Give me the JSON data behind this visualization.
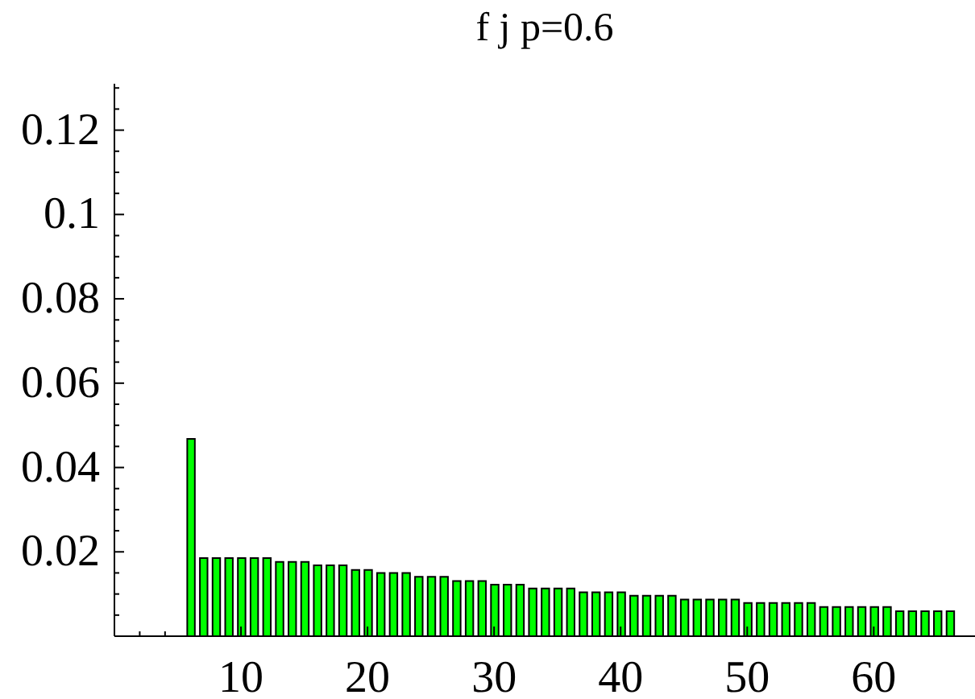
{
  "chart_data": {
    "type": "bar",
    "title": "f j p=0.6",
    "x": [
      6,
      7,
      8,
      9,
      10,
      11,
      12,
      13,
      14,
      15,
      16,
      17,
      18,
      19,
      20,
      21,
      22,
      23,
      24,
      25,
      26,
      27,
      28,
      29,
      30,
      31,
      32,
      33,
      34,
      35,
      36,
      37,
      38,
      39,
      40,
      41,
      42,
      43,
      44,
      45,
      46,
      47,
      48,
      49,
      50,
      51,
      52,
      53,
      54,
      55,
      56,
      57,
      58,
      59,
      60,
      61,
      62,
      63,
      64,
      65,
      66
    ],
    "values": [
      0.0468,
      0.0185,
      0.0185,
      0.0185,
      0.0185,
      0.0185,
      0.0185,
      0.0176,
      0.0176,
      0.0176,
      0.0168,
      0.0168,
      0.0168,
      0.0157,
      0.0157,
      0.015,
      0.015,
      0.015,
      0.0141,
      0.0141,
      0.0141,
      0.0131,
      0.0131,
      0.0131,
      0.0122,
      0.0122,
      0.0122,
      0.0113,
      0.0113,
      0.0113,
      0.0113,
      0.0104,
      0.0104,
      0.0104,
      0.0104,
      0.0096,
      0.0096,
      0.0096,
      0.0096,
      0.0087,
      0.0087,
      0.0087,
      0.0087,
      0.0087,
      0.0079,
      0.0079,
      0.0079,
      0.0079,
      0.0079,
      0.0079,
      0.0069,
      0.0069,
      0.0069,
      0.0069,
      0.0069,
      0.0069,
      0.0059,
      0.0059,
      0.0059,
      0.0059,
      0.0059
    ],
    "color": "#00ff00",
    "xlim": [
      0,
      68
    ],
    "xticks": [
      {
        "value": 2,
        "label": null
      },
      {
        "value": 4,
        "label": null
      },
      10,
      20,
      30,
      40,
      50,
      60
    ],
    "ylim": [
      0,
      0.131
    ],
    "yticks": [
      {
        "value": 0.005,
        "label": null
      },
      {
        "value": 0.01,
        "label": null
      },
      {
        "value": 0.015,
        "label": null
      },
      0.02,
      {
        "value": 0.025,
        "label": null
      },
      {
        "value": 0.03,
        "label": null
      },
      {
        "value": 0.035,
        "label": null
      },
      0.04,
      {
        "value": 0.045,
        "label": null
      },
      {
        "value": 0.05,
        "label": null
      },
      {
        "value": 0.055,
        "label": null
      },
      0.06,
      {
        "value": 0.065,
        "label": null
      },
      {
        "value": 0.07,
        "label": null
      },
      {
        "value": 0.075,
        "label": null
      },
      0.08,
      {
        "value": 0.085,
        "label": null
      },
      {
        "value": 0.09,
        "label": null
      },
      {
        "value": 0.095,
        "label": null
      },
      0.1,
      {
        "value": 0.105,
        "label": null
      },
      {
        "value": 0.11,
        "label": null
      },
      {
        "value": 0.115,
        "label": null
      },
      0.12,
      {
        "value": 0.125,
        "label": null
      },
      {
        "value": 0.13,
        "label": null
      }
    ]
  }
}
